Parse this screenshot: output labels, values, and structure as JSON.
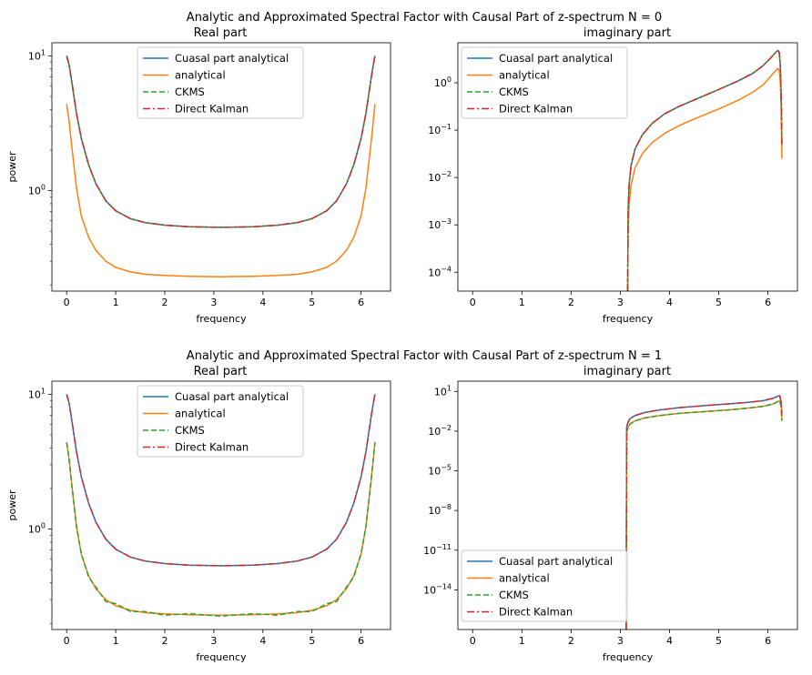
{
  "figures": [
    {
      "suptitle": "Analytic and Approximated Spectral Factor with Causal Part of z-spectrum N = 0",
      "left_title": "Real part",
      "right_title": "imaginary part"
    },
    {
      "suptitle": "Analytic and Approximated Spectral Factor with Causal Part of z-spectrum N = 1",
      "left_title": "Real part",
      "right_title": "imaginary part"
    }
  ],
  "colors": {
    "causal_analytical": "#1f77b4",
    "analytical": "#ff7f0e",
    "ckms": "#2ca02c",
    "direct_kalman": "#d62728"
  },
  "chart_data": [
    {
      "id": "n0-real",
      "type": "line",
      "title": "Real part",
      "xlabel": "frequency",
      "ylabel": "power",
      "yscale": "log",
      "xlim": [
        -0.3,
        6.6
      ],
      "ylim": [
        0.18,
        12.5
      ],
      "xticks": [
        0,
        1,
        2,
        3,
        4,
        5,
        6
      ],
      "yticks": [
        {
          "value": 1,
          "base": "10",
          "exp": "0"
        },
        {
          "value": 10,
          "base": "10",
          "exp": "1"
        }
      ],
      "legend": {
        "position": "upper center",
        "entries": [
          "Cuasal part analytical",
          "analytical",
          "CKMS",
          "Direct Kalman"
        ]
      },
      "x": [
        0,
        0.05,
        0.1,
        0.2,
        0.3,
        0.45,
        0.6,
        0.8,
        1.0,
        1.3,
        1.6,
        2.0,
        2.5,
        3.14,
        3.8,
        4.3,
        4.7,
        5.0,
        5.3,
        5.5,
        5.7,
        5.85,
        6.0,
        6.1,
        6.2,
        6.25,
        6.283
      ],
      "series": [
        {
          "name": "Cuasal part analytical",
          "key": "causal_analytical",
          "style": "solid",
          "values": [
            10.0,
            8.6,
            6.6,
            3.75,
            2.45,
            1.55,
            1.12,
            0.84,
            0.71,
            0.62,
            0.58,
            0.555,
            0.54,
            0.535,
            0.54,
            0.555,
            0.58,
            0.62,
            0.71,
            0.84,
            1.12,
            1.55,
            2.45,
            3.75,
            6.6,
            8.6,
            10.0
          ]
        },
        {
          "name": "analytical",
          "key": "analytical",
          "style": "solid",
          "values": [
            4.4,
            3.3,
            2.2,
            1.05,
            0.65,
            0.45,
            0.36,
            0.3,
            0.27,
            0.25,
            0.24,
            0.235,
            0.232,
            0.23,
            0.232,
            0.235,
            0.24,
            0.25,
            0.27,
            0.3,
            0.36,
            0.45,
            0.65,
            1.05,
            2.2,
            3.3,
            4.4
          ]
        },
        {
          "name": "CKMS",
          "key": "ckms",
          "style": "dashed",
          "values": [
            10.0,
            8.6,
            6.6,
            3.75,
            2.45,
            1.55,
            1.12,
            0.84,
            0.71,
            0.62,
            0.58,
            0.555,
            0.54,
            0.535,
            0.54,
            0.555,
            0.58,
            0.62,
            0.71,
            0.84,
            1.12,
            1.55,
            2.45,
            3.75,
            6.6,
            8.6,
            10.0
          ]
        },
        {
          "name": "Direct Kalman",
          "key": "direct_kalman",
          "style": "dashdot",
          "values": [
            10.0,
            8.6,
            6.6,
            3.75,
            2.45,
            1.55,
            1.12,
            0.84,
            0.71,
            0.62,
            0.58,
            0.555,
            0.54,
            0.535,
            0.54,
            0.555,
            0.58,
            0.62,
            0.71,
            0.84,
            1.12,
            1.55,
            2.45,
            3.75,
            6.6,
            8.6,
            10.0
          ]
        }
      ]
    },
    {
      "id": "n0-imag",
      "type": "line",
      "title": "imaginary part",
      "xlabel": "frequency",
      "ylabel": "",
      "yscale": "log",
      "xlim": [
        -0.3,
        6.6
      ],
      "ylim": [
        4e-05,
        7.0
      ],
      "xticks": [
        0,
        1,
        2,
        3,
        4,
        5,
        6
      ],
      "yticks": [
        {
          "value": 0.0001,
          "base": "10",
          "exp": "−4"
        },
        {
          "value": 0.001,
          "base": "10",
          "exp": "−3"
        },
        {
          "value": 0.01,
          "base": "10",
          "exp": "−2"
        },
        {
          "value": 0.1,
          "base": "10",
          "exp": "−1"
        },
        {
          "value": 1,
          "base": "10",
          "exp": "0"
        }
      ],
      "legend": {
        "position": "upper left",
        "entries": [
          "Cuasal part analytical",
          "analytical",
          "CKMS",
          "Direct Kalman"
        ]
      },
      "x": [
        3.15,
        3.16,
        3.18,
        3.22,
        3.3,
        3.45,
        3.65,
        3.9,
        4.2,
        4.6,
        5.0,
        5.4,
        5.7,
        5.9,
        6.05,
        6.15,
        6.2,
        6.23,
        6.25,
        6.27,
        6.283
      ],
      "series": [
        {
          "name": "Cuasal part analytical",
          "key": "causal_analytical",
          "style": "solid",
          "values": [
            4e-05,
            0.002,
            0.007,
            0.018,
            0.04,
            0.08,
            0.14,
            0.22,
            0.32,
            0.48,
            0.72,
            1.1,
            1.6,
            2.3,
            3.3,
            4.3,
            4.8,
            4.4,
            2.5,
            0.5,
            0.05
          ]
        },
        {
          "name": "analytical",
          "key": "analytical",
          "style": "solid",
          "values": [
            4e-05,
            0.0008,
            0.0027,
            0.007,
            0.016,
            0.032,
            0.055,
            0.085,
            0.125,
            0.19,
            0.28,
            0.43,
            0.64,
            0.9,
            1.35,
            1.78,
            2.0,
            1.8,
            1.1,
            0.25,
            0.025
          ]
        },
        {
          "name": "CKMS",
          "key": "ckms",
          "style": "dashed",
          "values": [
            4e-05,
            0.002,
            0.007,
            0.018,
            0.04,
            0.08,
            0.14,
            0.22,
            0.32,
            0.48,
            0.72,
            1.1,
            1.6,
            2.3,
            3.3,
            4.3,
            4.8,
            4.4,
            2.5,
            0.5,
            0.05
          ]
        },
        {
          "name": "Direct Kalman",
          "key": "direct_kalman",
          "style": "dashdot",
          "values": [
            4e-05,
            0.002,
            0.007,
            0.018,
            0.04,
            0.08,
            0.14,
            0.22,
            0.32,
            0.48,
            0.72,
            1.1,
            1.6,
            2.3,
            3.3,
            4.3,
            4.8,
            4.4,
            2.5,
            0.5,
            0.05
          ]
        }
      ]
    },
    {
      "id": "n1-real",
      "type": "line",
      "title": "Real part",
      "xlabel": "frequency",
      "ylabel": "power",
      "yscale": "log",
      "xlim": [
        -0.3,
        6.6
      ],
      "ylim": [
        0.18,
        12.5
      ],
      "xticks": [
        0,
        1,
        2,
        3,
        4,
        5,
        6
      ],
      "yticks": [
        {
          "value": 1,
          "base": "10",
          "exp": "0"
        },
        {
          "value": 10,
          "base": "10",
          "exp": "1"
        }
      ],
      "legend": {
        "position": "upper center",
        "entries": [
          "Cuasal part analytical",
          "analytical",
          "CKMS",
          "Direct Kalman"
        ]
      },
      "x": [
        0,
        0.05,
        0.1,
        0.2,
        0.3,
        0.45,
        0.6,
        0.8,
        1.0,
        1.3,
        1.6,
        2.0,
        2.5,
        3.14,
        3.8,
        4.3,
        4.7,
        5.0,
        5.3,
        5.5,
        5.7,
        5.85,
        6.0,
        6.1,
        6.2,
        6.25,
        6.283
      ],
      "series": [
        {
          "name": "Cuasal part analytical",
          "key": "causal_analytical",
          "style": "solid",
          "values": [
            10.0,
            8.6,
            6.6,
            3.75,
            2.45,
            1.55,
            1.12,
            0.84,
            0.71,
            0.62,
            0.58,
            0.555,
            0.54,
            0.535,
            0.54,
            0.555,
            0.58,
            0.62,
            0.71,
            0.84,
            1.12,
            1.55,
            2.45,
            3.75,
            6.6,
            8.6,
            10.0
          ]
        },
        {
          "name": "analytical",
          "key": "analytical",
          "style": "solid",
          "values": [
            4.4,
            3.3,
            2.2,
            1.05,
            0.65,
            0.45,
            0.36,
            0.3,
            0.27,
            0.25,
            0.24,
            0.235,
            0.232,
            0.23,
            0.232,
            0.235,
            0.24,
            0.25,
            0.27,
            0.3,
            0.36,
            0.45,
            0.65,
            1.05,
            2.2,
            3.3,
            4.4
          ]
        },
        {
          "name": "CKMS",
          "key": "ckms",
          "style": "dashed",
          "values": [
            4.4,
            3.3,
            2.2,
            1.05,
            0.66,
            0.44,
            0.37,
            0.29,
            0.28,
            0.245,
            0.245,
            0.23,
            0.236,
            0.226,
            0.236,
            0.23,
            0.245,
            0.245,
            0.28,
            0.29,
            0.37,
            0.44,
            0.66,
            1.05,
            2.2,
            3.3,
            4.4
          ]
        },
        {
          "name": "Direct Kalman",
          "key": "direct_kalman",
          "style": "dashdot",
          "values": [
            10.0,
            8.6,
            6.6,
            3.75,
            2.45,
            1.55,
            1.12,
            0.84,
            0.71,
            0.62,
            0.58,
            0.555,
            0.54,
            0.535,
            0.54,
            0.555,
            0.58,
            0.62,
            0.71,
            0.84,
            1.12,
            1.55,
            2.45,
            3.75,
            6.6,
            8.6,
            10.0
          ]
        }
      ]
    },
    {
      "id": "n1-imag",
      "type": "line",
      "title": "imaginary part",
      "xlabel": "frequency",
      "ylabel": "",
      "yscale": "log",
      "xlim": [
        -0.3,
        6.6
      ],
      "ylim": [
        1e-17,
        60
      ],
      "xticks": [
        0,
        1,
        2,
        3,
        4,
        5,
        6
      ],
      "yticks": [
        {
          "value": 1e-14,
          "base": "10",
          "exp": "−14"
        },
        {
          "value": 1e-11,
          "base": "10",
          "exp": "−11"
        },
        {
          "value": 1e-08,
          "base": "10",
          "exp": "−8"
        },
        {
          "value": 1e-05,
          "base": "10",
          "exp": "−5"
        },
        {
          "value": 0.01,
          "base": "10",
          "exp": "−2"
        },
        {
          "value": 10,
          "base": "10",
          "exp": "1"
        }
      ],
      "legend": {
        "position": "lower left",
        "entries": [
          "Cuasal part analytical",
          "analytical",
          "CKMS",
          "Direct Kalman"
        ]
      },
      "x": [
        3.12,
        3.13,
        3.16,
        3.2,
        3.3,
        3.5,
        3.8,
        4.2,
        4.7,
        5.2,
        5.6,
        5.9,
        6.1,
        6.2,
        6.24,
        6.27,
        6.283
      ],
      "series": [
        {
          "name": "Cuasal part analytical",
          "key": "causal_analytical",
          "style": "solid",
          "values": [
            1e-17,
            0.02,
            0.05,
            0.09,
            0.15,
            0.26,
            0.4,
            0.6,
            0.85,
            1.15,
            1.5,
            2.0,
            3.0,
            4.3,
            4.8,
            1.5,
            0.15
          ]
        },
        {
          "name": "analytical",
          "key": "analytical",
          "style": "solid",
          "values": [
            1e-17,
            0.008,
            0.02,
            0.035,
            0.06,
            0.1,
            0.15,
            0.22,
            0.3,
            0.4,
            0.55,
            0.75,
            1.1,
            1.7,
            2.0,
            0.7,
            0.06
          ]
        },
        {
          "name": "CKMS",
          "key": "ckms",
          "style": "dashed",
          "values": [
            1e-17,
            0.008,
            0.02,
            0.035,
            0.06,
            0.1,
            0.15,
            0.22,
            0.3,
            0.4,
            0.55,
            0.75,
            1.1,
            1.7,
            2.0,
            0.7,
            0.06
          ]
        },
        {
          "name": "Direct Kalman",
          "key": "direct_kalman",
          "style": "dashdot",
          "values": [
            1e-17,
            0.02,
            0.05,
            0.09,
            0.15,
            0.26,
            0.4,
            0.6,
            0.85,
            1.15,
            1.5,
            2.0,
            3.0,
            4.3,
            4.8,
            1.5,
            0.15
          ]
        }
      ]
    }
  ]
}
